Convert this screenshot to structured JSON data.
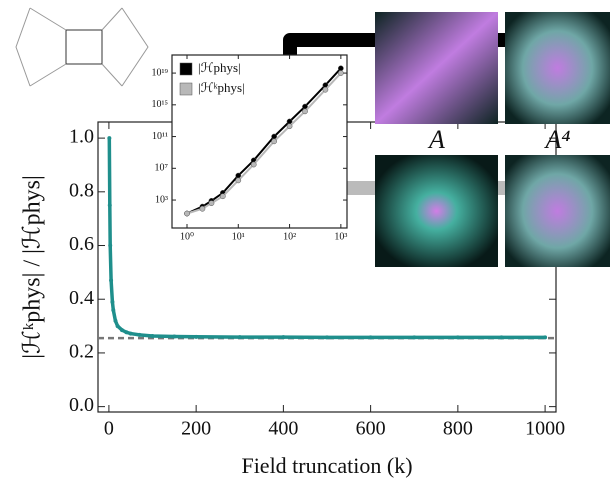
{
  "chart_data": [
    {
      "type": "line",
      "x_label": "Field truncation (k)",
      "y_label": "|ℋᵏphys| / |ℋphys|",
      "x": [
        1,
        2,
        3,
        5,
        8,
        10,
        15,
        20,
        30,
        40,
        50,
        70,
        100,
        150,
        200,
        300,
        400,
        500,
        600,
        700,
        800,
        900,
        1000
      ],
      "series": [
        {
          "color": "#1f8f8c",
          "values": [
            1.0,
            0.75,
            0.6,
            0.47,
            0.39,
            0.36,
            0.32,
            0.3,
            0.285,
            0.277,
            0.272,
            0.267,
            0.263,
            0.261,
            0.26,
            0.259,
            0.259,
            0.258,
            0.258,
            0.258,
            0.258,
            0.258,
            0.258
          ]
        }
      ],
      "reference_line": {
        "value": 0.255,
        "color": "#777777"
      },
      "xlim": [
        -25,
        1025
      ],
      "xticks": [
        0,
        200,
        400,
        600,
        800,
        1000
      ],
      "ylim": [
        -0.02,
        1.06
      ],
      "yticks": [
        {
          "value": 0,
          "label": "0.0"
        },
        0.2,
        0.4,
        0.6,
        0.8,
        {
          "value": 1,
          "label": "1.0"
        }
      ],
      "annotations": [
        "A",
        "A⁴"
      ]
    },
    {
      "type": "line",
      "log_x": true,
      "log_y": true,
      "x": [
        1,
        2,
        3,
        5,
        10,
        20,
        50,
        100,
        200,
        500,
        1000
      ],
      "series": [
        {
          "name": "|ℋphys|",
          "color": "#000000",
          "values": [
            20,
            150,
            800,
            8000,
            1200000,
            100000000,
            100000000000,
            8000000000000,
            600000000000000,
            3e+17,
            4e+19
          ]
        },
        {
          "name": "|ℋᵏphys|",
          "color": "#b8b8b8",
          "values": [
            20,
            80,
            400,
            3000,
            300000,
            30000000,
            25000000000,
            2000000000000,
            150000000000000,
            8e+16,
            1e+19
          ]
        }
      ],
      "xlim": [
        0.51,
        1318
      ],
      "xticks": [
        {
          "value": 1,
          "label": "10⁰"
        },
        {
          "value": 10,
          "label": "10¹"
        },
        {
          "value": 100,
          "label": "10²"
        },
        {
          "value": 1000,
          "label": "10³"
        }
      ],
      "ylim": [
        0.3,
        1.9e+21
      ],
      "yticks": [
        {
          "value": 1000,
          "label": "10³"
        },
        {
          "value": 10000000,
          "label": "10⁷"
        },
        {
          "value": 100000000000,
          "label": "10¹¹"
        },
        {
          "value": 1000000000000000,
          "label": "10¹⁵"
        },
        {
          "value": 1e+19,
          "label": "10¹⁹"
        }
      ],
      "legend": "upper-left"
    }
  ]
}
